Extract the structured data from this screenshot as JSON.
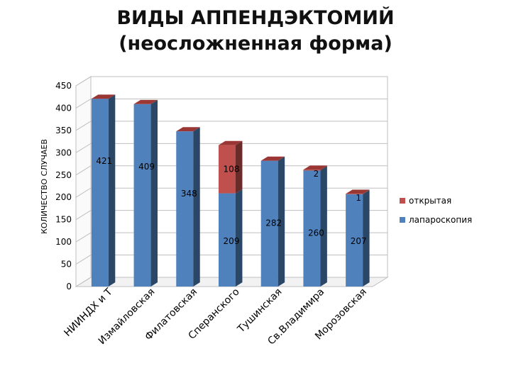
{
  "title_line1": "ВИДЫ АППЕНДЭКТОМИЙ",
  "title_line2": "(неосложненная форма)",
  "chart_data": {
    "type": "bar",
    "stacked": true,
    "three_d": true,
    "ylabel": "КОЛИЧЕСТВО СЛУЧАЕВ",
    "xlabel": "",
    "ylim": [
      0,
      450
    ],
    "yticks": [
      0,
      50,
      100,
      150,
      200,
      250,
      300,
      350,
      400,
      450
    ],
    "grid": true,
    "legend_position": "right",
    "categories": [
      "НИИНДХ и Т",
      "Измайловская",
      "Филатовская",
      "Сперанского",
      "Тушинская",
      "Св.Владимира",
      "Морозовская"
    ],
    "series": [
      {
        "name": "лапароскопия",
        "color": "#4f81bd",
        "values": [
          421,
          409,
          348,
          209,
          282,
          260,
          207
        ]
      },
      {
        "name": "открытая",
        "color": "#c0504d",
        "values": [
          0,
          0,
          0,
          108,
          0,
          2,
          1
        ]
      }
    ],
    "data_labels": {
      "лапароскопия": [
        "421",
        "409",
        "348",
        "209",
        "282",
        "260",
        "207"
      ],
      "открытая": [
        "",
        "",
        "",
        "108",
        "",
        "2",
        "1"
      ]
    }
  }
}
